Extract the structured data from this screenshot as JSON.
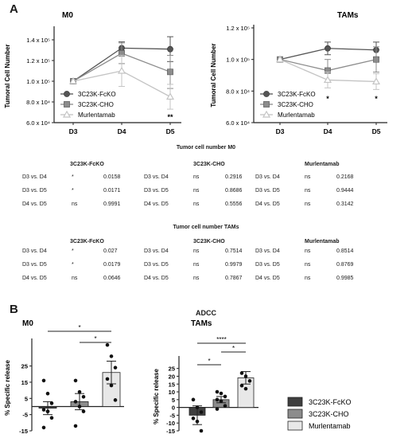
{
  "panels": {
    "a": "A",
    "b": "B"
  },
  "chart_data": [
    {
      "type": "line",
      "title": "M0",
      "ylabel": "Tumoral Cell Number",
      "x": [
        "D3",
        "D4",
        "D5"
      ],
      "yticks": [
        "6.0 x 10⁴",
        "8.0 x 10⁴",
        "1.0 x 10⁵",
        "1.2 x 10⁵",
        "1.4 x 10⁵"
      ],
      "ylim": [
        60000,
        150000
      ],
      "series": [
        {
          "name": "3C23K-FcKO",
          "color": "#555555",
          "marker": "circle",
          "values": [
            100000,
            132000,
            131000
          ],
          "err": [
            0,
            6000,
            12000
          ]
        },
        {
          "name": "3C23K-CHO",
          "color": "#8c8c8c",
          "marker": "square",
          "values": [
            100000,
            127000,
            109000
          ],
          "err": [
            0,
            10000,
            16000
          ]
        },
        {
          "name": "Murlentamab",
          "color": "#c4c4c4",
          "marker": "triangle",
          "values": [
            100000,
            110000,
            85000
          ],
          "err": [
            0,
            15000,
            12000
          ]
        }
      ],
      "annotations": [
        {
          "x": "D5",
          "text": "**"
        }
      ],
      "legend": "bottom-left"
    },
    {
      "type": "line",
      "title": "TAMs",
      "ylabel": "Tumoral Cell Number",
      "x": [
        "D3",
        "D4",
        "D5"
      ],
      "yticks": [
        "6.0 x 10⁴",
        "8.0 x 10⁴",
        "1.0 x 10⁵",
        "1.2 x 10⁵"
      ],
      "ylim": [
        60000,
        120000
      ],
      "series": [
        {
          "name": "3C23K-FcKO",
          "color": "#555555",
          "marker": "circle",
          "values": [
            100000,
            107000,
            106000
          ],
          "err": [
            0,
            4000,
            5000
          ]
        },
        {
          "name": "3C23K-CHO",
          "color": "#8c8c8c",
          "marker": "square",
          "values": [
            100000,
            93000,
            100000
          ],
          "err": [
            0,
            7000,
            8000
          ]
        },
        {
          "name": "Murlentamab",
          "color": "#c4c4c4",
          "marker": "triangle",
          "values": [
            100000,
            87000,
            86000
          ],
          "err": [
            0,
            5000,
            5000
          ]
        }
      ],
      "annotations": [
        {
          "x": "D4",
          "text": "*"
        },
        {
          "x": "D5",
          "text": "*"
        }
      ],
      "legend": "bottom-left"
    },
    {
      "type": "table",
      "title": "Tumor cell number M0",
      "groups": [
        {
          "name": "3C23K-FcKO",
          "rows": [
            [
              "D3 vs. D4",
              "*",
              "0.0158"
            ],
            [
              "D3 vs. D5",
              "*",
              "0.0171"
            ],
            [
              "D4 vs. D5",
              "ns",
              "0.9991"
            ]
          ]
        },
        {
          "name": "3C23K-CHO",
          "rows": [
            [
              "D3 vs. D4",
              "ns",
              "0.2916"
            ],
            [
              "D3 vs. D5",
              "ns",
              "0.8686"
            ],
            [
              "D4 vs. D5",
              "ns",
              "0.5556"
            ]
          ]
        },
        {
          "name": "Murlentamab",
          "rows": [
            [
              "D3 vs. D4",
              "ns",
              "0.2168"
            ],
            [
              "D3 vs. D5",
              "ns",
              "0.9444"
            ],
            [
              "D4 vs. D5",
              "ns",
              "0.3142"
            ]
          ]
        }
      ]
    },
    {
      "type": "table",
      "title": "Tumor cell number TAMs",
      "groups": [
        {
          "name": "3C23K-FcKO",
          "rows": [
            [
              "D3 vs. D4",
              "*",
              "0.027"
            ],
            [
              "D3 vs. D5",
              "*",
              "0.0179"
            ],
            [
              "D4 vs. D5",
              "ns",
              "0.0646"
            ]
          ]
        },
        {
          "name": "3C23K-CHO",
          "rows": [
            [
              "D3 vs. D4",
              "ns",
              "0.7514"
            ],
            [
              "D3 vs. D5",
              "ns",
              "0.9979"
            ],
            [
              "D4 vs. D5",
              "ns",
              "0.7867"
            ]
          ]
        },
        {
          "name": "Murlentamab",
          "rows": [
            [
              "D3 vs. D4",
              "ns",
              "0.8514"
            ],
            [
              "D3 vs. D5",
              "ns",
              "0.8769"
            ],
            [
              "D4 vs. D5",
              "ns",
              "0.9985"
            ]
          ]
        }
      ]
    },
    {
      "type": "bar",
      "suptitle": "ADCC",
      "title": "M0",
      "ylabel": "% Specific release",
      "categories": [
        "3C23K-FcKO",
        "3C23K-CHO",
        "Murlentamab"
      ],
      "colors": [
        "#3f3f3f",
        "#8c8c8c",
        "#e8e8e8"
      ],
      "values": [
        -1,
        3,
        21
      ],
      "err": [
        4,
        5,
        7
      ],
      "points": [
        [
          16,
          8,
          2,
          -2,
          -3,
          -7,
          -13,
          -3
        ],
        [
          16,
          9,
          6,
          3,
          0,
          -3,
          -12
        ],
        [
          38,
          31,
          24,
          17,
          13,
          4
        ]
      ],
      "yticks": [
        -15,
        -5,
        5,
        15,
        25
      ],
      "ylim": [
        -15,
        42
      ],
      "significance": [
        {
          "from": 0,
          "to": 2,
          "text": "*"
        },
        {
          "from": 1,
          "to": 2,
          "text": "*"
        }
      ]
    },
    {
      "type": "bar",
      "title": "TAMs",
      "ylabel": "% Specific release",
      "categories": [
        "3C23K-FcKO",
        "3C23K-CHO",
        "Murlentamab"
      ],
      "colors": [
        "#3f3f3f",
        "#8c8c8c",
        "#e8e8e8"
      ],
      "values": [
        -5,
        5,
        19
      ],
      "err": [
        6,
        2,
        4
      ],
      "points": [
        [
          5,
          0,
          -3,
          -7,
          -9,
          -15
        ],
        [
          10,
          9,
          7,
          5,
          4,
          1,
          -1
        ],
        [
          22,
          20,
          17,
          14,
          12
        ]
      ],
      "yticks": [
        -15,
        -10,
        -5,
        0,
        5,
        10,
        15,
        20,
        25
      ],
      "ylim": [
        -15,
        33
      ],
      "significance": [
        {
          "from": 0,
          "to": 2,
          "text": "****"
        },
        {
          "from": 0,
          "to": 1,
          "text": "*"
        },
        {
          "from": 1,
          "to": 2,
          "text": "*"
        }
      ],
      "legend": "right"
    }
  ]
}
